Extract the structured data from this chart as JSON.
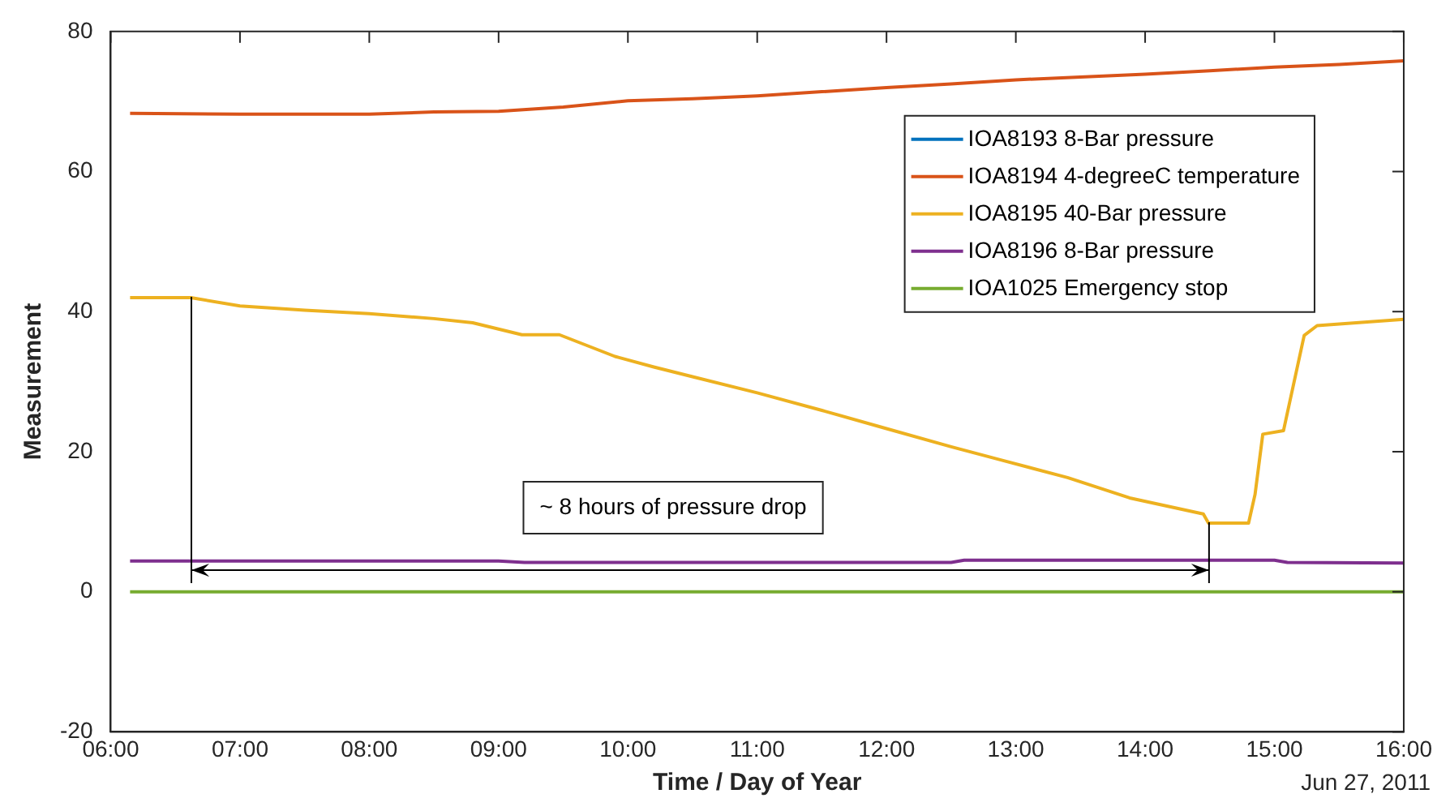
{
  "chart_data": {
    "type": "line",
    "xlabel": "Time / Day of Year",
    "ylabel": "Measurement",
    "xlim": [
      6,
      16
    ],
    "xticks": [
      {
        "value": 6,
        "label": "06:00"
      },
      {
        "value": 7,
        "label": "07:00"
      },
      {
        "value": 8,
        "label": "08:00"
      },
      {
        "value": 9,
        "label": "09:00"
      },
      {
        "value": 10,
        "label": "10:00"
      },
      {
        "value": 11,
        "label": "11:00"
      },
      {
        "value": 12,
        "label": "12:00"
      },
      {
        "value": 13,
        "label": "13:00"
      },
      {
        "value": 14,
        "label": "14:00"
      },
      {
        "value": 15,
        "label": "15:00"
      },
      {
        "value": 16,
        "label": "16:00"
      }
    ],
    "ylim": [
      -20,
      80
    ],
    "yticks": [
      -20,
      0,
      20,
      40,
      60,
      80
    ],
    "grid": false,
    "legend": "top right",
    "marker": "none",
    "line_style": "solid",
    "series": [
      {
        "name": "IOA8193 8-Bar pressure",
        "color": "#0072bd"
      },
      {
        "name": "IOA8194 4-degreeC temperature",
        "color": "#d95319",
        "x": [
          6.15,
          7,
          8,
          8.5,
          9,
          9.5,
          10,
          10.5,
          11,
          11.5,
          12,
          12.5,
          13,
          13.5,
          14,
          14.5,
          15,
          15.5,
          16
        ],
        "values": [
          68.3,
          68.2,
          68.2,
          68.5,
          68.6,
          69.2,
          70.1,
          70.4,
          70.8,
          71.4,
          72,
          72.5,
          73.1,
          73.5,
          73.9,
          74.4,
          74.9,
          75.3,
          75.8
        ]
      },
      {
        "name": "IOA8195 40-Bar pressure",
        "color": "#edb120",
        "x": [
          6.15,
          6.62,
          7,
          7.5,
          8,
          8.5,
          8.8,
          9.18,
          9.47,
          9.9,
          10.2,
          10.5,
          11,
          11.5,
          12,
          12.5,
          12.89,
          13.4,
          13.88,
          14.45,
          14.49,
          14.8,
          14.85,
          14.91,
          15.07,
          15.23,
          15.33,
          16
        ],
        "values": [
          42,
          42,
          40.8,
          40.2,
          39.7,
          39.0,
          38.4,
          36.7,
          36.7,
          33.6,
          32.1,
          30.7,
          28.4,
          25.9,
          23.3,
          20.7,
          18.8,
          16.3,
          13.4,
          11.1,
          9.8,
          9.8,
          13.9,
          22.5,
          23,
          36.6,
          38,
          38.9
        ]
      },
      {
        "name": "IOA8196 8-Bar pressure",
        "color": "#7e2f8e",
        "x": [
          6.15,
          9,
          9.2,
          12.5,
          12.6,
          15,
          15.1,
          16
        ],
        "values": [
          4.4,
          4.4,
          4.2,
          4.2,
          4.5,
          4.5,
          4.2,
          4.1
        ]
      },
      {
        "name": "IOA1025 Emergency stop",
        "color": "#77ac30",
        "x": [
          6.15,
          16
        ],
        "values": [
          0,
          0
        ]
      }
    ],
    "annotations": [
      "~ 8 hours of pressure drop",
      "Jun 27, 2011"
    ]
  }
}
